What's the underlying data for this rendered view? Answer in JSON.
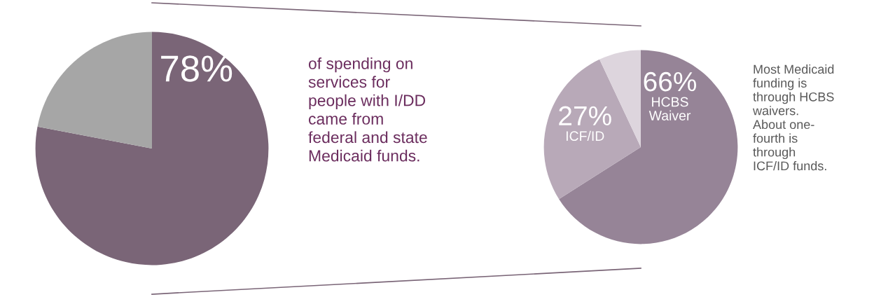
{
  "chart_data": [
    {
      "type": "pie",
      "categories": [
        null,
        null
      ],
      "values": [
        78,
        22
      ],
      "colors": [
        "#7a6577",
        "#a6a6a6"
      ],
      "value_labels": [
        "78%",
        null
      ],
      "annotations": [
        "of spending on\nservices for\npeople with I/DD\ncame from\nfederal and state\nMedicaid funds."
      ]
    },
    {
      "type": "pie",
      "categories": [
        "HCBS\nWaiver",
        "ICF/ID",
        null
      ],
      "values": [
        66,
        27,
        7
      ],
      "colors": [
        "#968497",
        "#b8a9b8",
        "#ddd5dd"
      ],
      "value_labels": [
        "66%",
        "27%",
        null
      ],
      "annotations": [
        "Most Medicaid\nfunding is\nthrough HCBS\nwaivers.\nAbout one-\nfourth is\nthrough\nICF/ID funds."
      ]
    }
  ]
}
